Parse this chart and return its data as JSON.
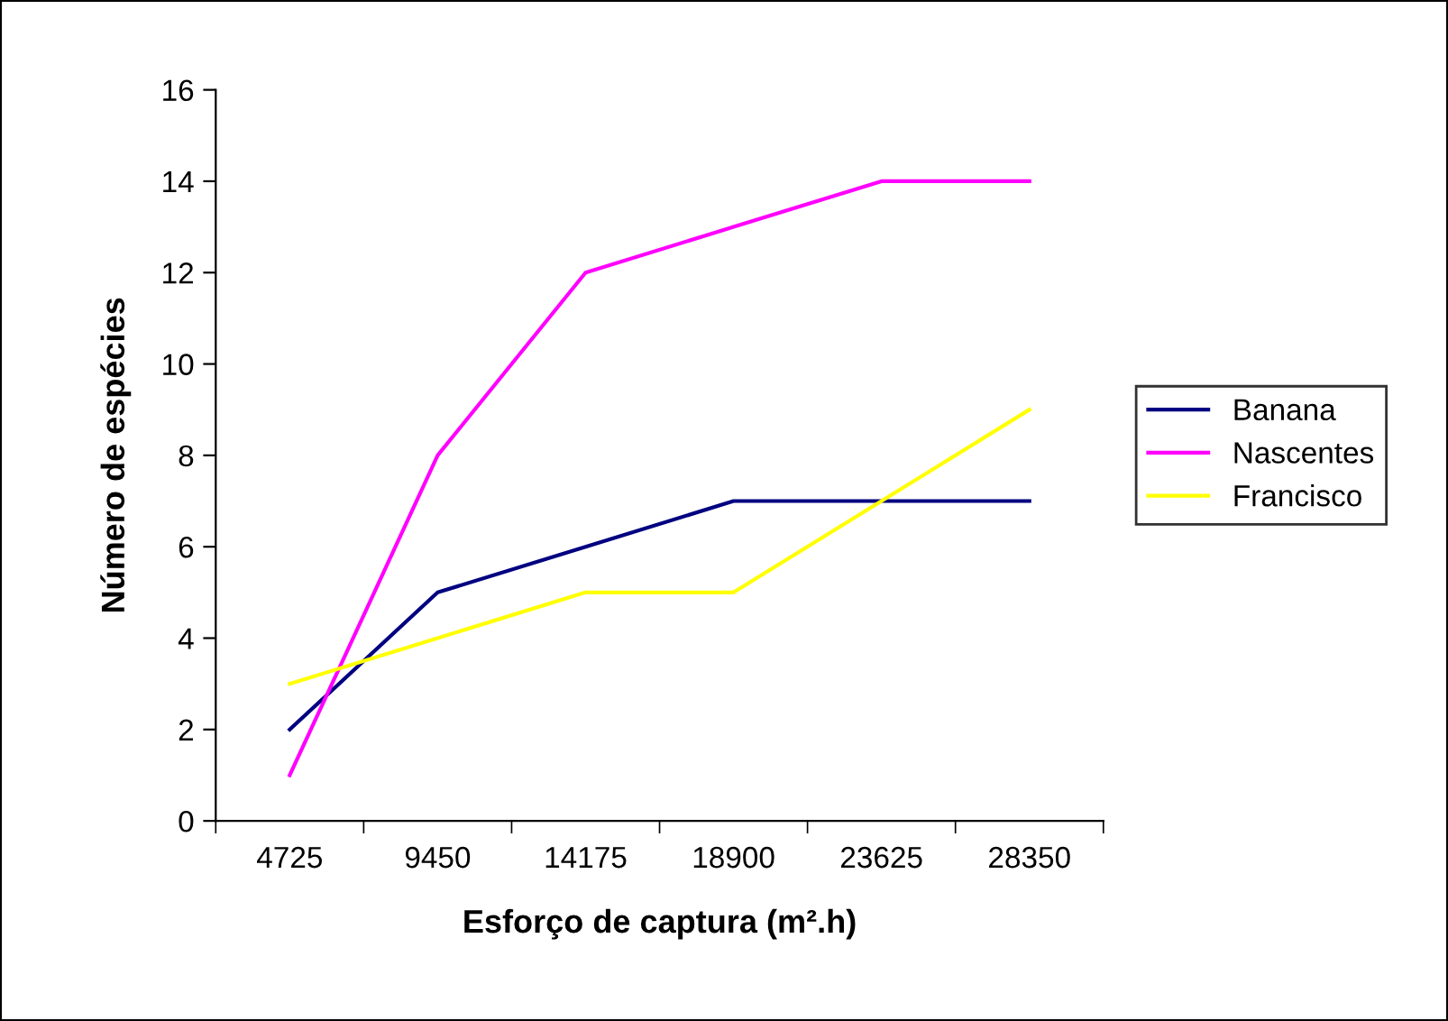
{
  "chart_data": {
    "type": "line",
    "xlabel": "Esforço de captura (m².h)",
    "ylabel": "Número de espécies",
    "categories": [
      "4725",
      "9450",
      "14175",
      "18900",
      "23625",
      "28350"
    ],
    "series": [
      {
        "name": "Banana",
        "color": "#000080",
        "values": [
          2,
          5,
          6,
          7,
          7,
          7
        ]
      },
      {
        "name": "Nascentes",
        "color": "#ff00ff",
        "values": [
          1,
          8,
          12,
          13,
          14,
          14
        ]
      },
      {
        "name": "Francisco",
        "color": "#ffff00",
        "values": [
          3,
          4,
          5,
          5,
          7,
          9
        ]
      }
    ],
    "ylim": [
      0,
      16
    ],
    "yticks": [
      0,
      2,
      4,
      6,
      8,
      10,
      12,
      14,
      16
    ],
    "grid": false,
    "legend": "right",
    "marker": "none",
    "line_style": "solid"
  }
}
